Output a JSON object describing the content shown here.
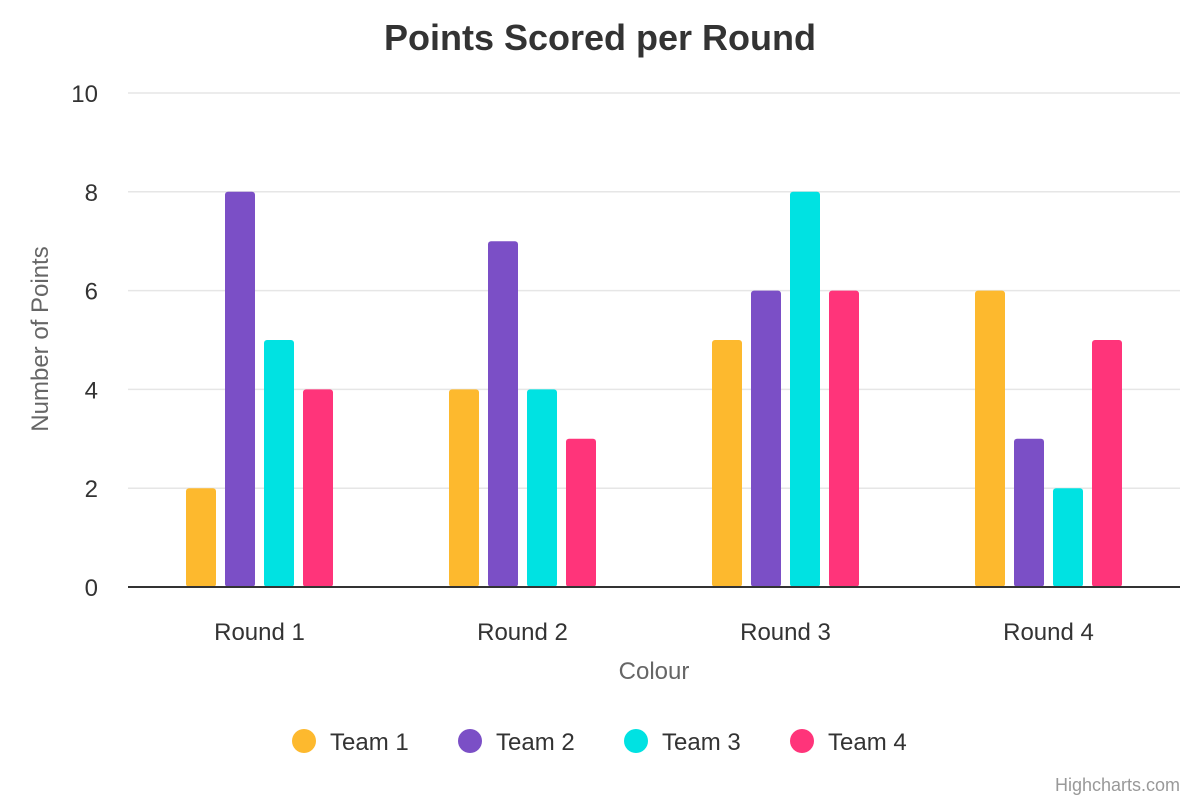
{
  "chart_data": {
    "type": "bar",
    "title": "Points Scored per Round",
    "xlabel": "Colour",
    "ylabel": "Number of Points",
    "categories": [
      "Round 1",
      "Round 2",
      "Round 3",
      "Round 4"
    ],
    "ylim": [
      0,
      10
    ],
    "yticks": [
      0,
      2,
      4,
      6,
      8,
      10
    ],
    "grid": true,
    "legend_position": "bottom-center",
    "series": [
      {
        "name": "Team 1",
        "color": "#fdb92e",
        "values": [
          2,
          4,
          5,
          6
        ]
      },
      {
        "name": "Team 2",
        "color": "#7b4fc6",
        "values": [
          8,
          7,
          6,
          3
        ]
      },
      {
        "name": "Team 3",
        "color": "#00e2e2",
        "values": [
          5,
          4,
          8,
          2
        ]
      },
      {
        "name": "Team 4",
        "color": "#ff347a",
        "values": [
          4,
          3,
          6,
          5
        ]
      }
    ]
  },
  "credits": "Highcharts.com"
}
